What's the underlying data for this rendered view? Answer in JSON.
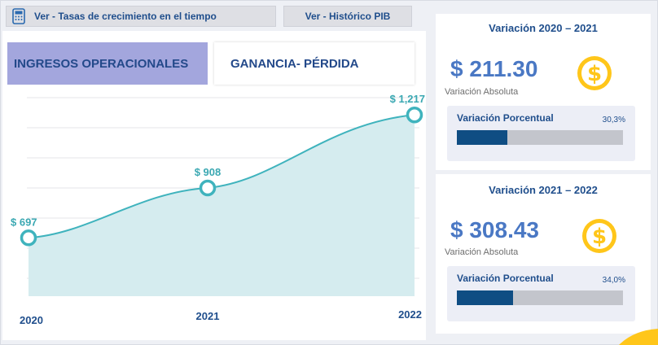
{
  "nav": {
    "tasas_label": "Ver -  Tasas de crecimiento en el tiempo",
    "pib_label": "Ver - Histórico  PIB",
    "icon": "calculator-icon"
  },
  "tabs": {
    "ingresos": "INGRESOS OPERACIONALES",
    "ganancia": "GANANCIA- PÉRDIDA"
  },
  "chart_data": {
    "type": "area",
    "categories": [
      "2020",
      "2021",
      "2022"
    ],
    "values": [
      697,
      908,
      1217
    ],
    "data_labels": [
      "$ 697",
      "$ 908",
      "$ 1,217"
    ],
    "ylim": [
      450,
      1290
    ],
    "grid": true,
    "colors": {
      "line": "#3fb3bd",
      "fill": "#d5ecef",
      "labels": "#3aa8b2",
      "ticks": "#1f4e8c",
      "grid": "#e4e6ea"
    }
  },
  "cards": [
    {
      "title": "Variación 2020 – 2021",
      "value": "$ 211.30",
      "sub": "Variación Absoluta",
      "pct_label": "Variación Porcentual",
      "pct_text": "30,3%",
      "pct": 0.303,
      "icon": "dollar-coin-icon"
    },
    {
      "title": "Variación 2021 – 2022",
      "value": "$ 308.43",
      "sub": "Variación Absoluta",
      "pct_label": "Variación Porcentual",
      "pct_text": "34,0%",
      "pct": 0.34,
      "icon": "dollar-coin-icon"
    }
  ],
  "colors": {
    "accent": "#1f4e8c",
    "coin": "#ffc61a",
    "bar": "#0f4d83",
    "tab_active": "#a3a6dd"
  }
}
